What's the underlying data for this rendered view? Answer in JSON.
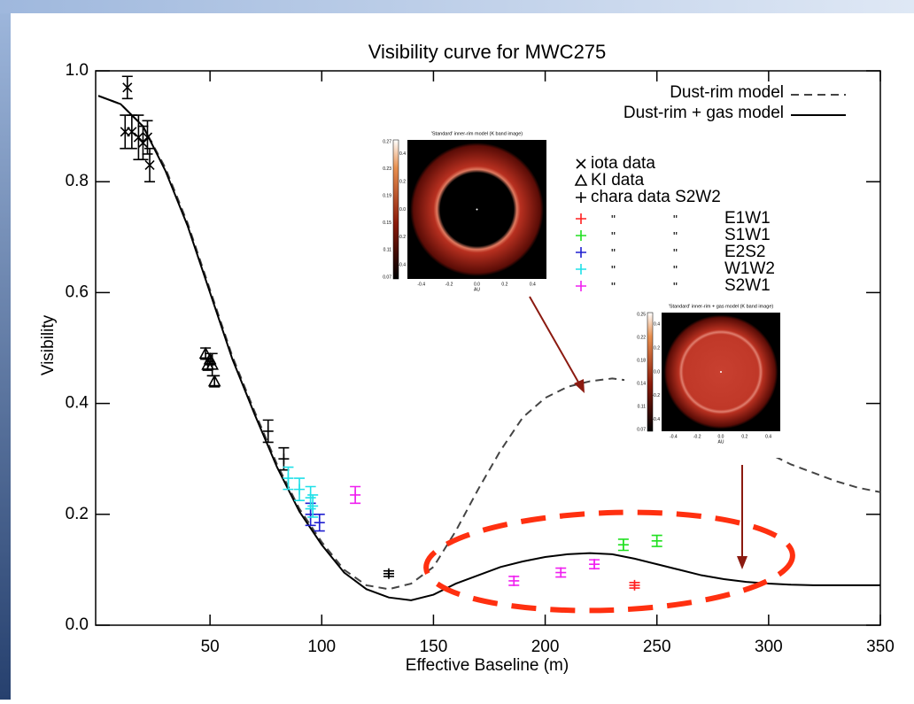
{
  "chart_data": {
    "type": "line",
    "title": "Visibility curve for MWC275",
    "xlabel": "Effective Baseline (m)",
    "ylabel": "Visibility",
    "xlim": [
      0,
      350
    ],
    "ylim": [
      0,
      1
    ],
    "xticks": [
      50,
      100,
      150,
      200,
      250,
      300,
      350
    ],
    "yticks": [
      {
        "value": 0,
        "label": "0.0"
      },
      0.2,
      0.4,
      0.6,
      0.8,
      {
        "value": 1,
        "label": "1.0"
      }
    ],
    "ditto": "\"",
    "models": [
      {
        "name": "Dust-rim model",
        "color": "#444444",
        "style": "dashed",
        "x": [
          0,
          10,
          20,
          30,
          40,
          50,
          60,
          70,
          80,
          90,
          100,
          110,
          120,
          130,
          140,
          150,
          160,
          170,
          180,
          190,
          200,
          210,
          220,
          230,
          240,
          250,
          260,
          270,
          280,
          290,
          300,
          310,
          320,
          330,
          340,
          350
        ],
        "values": [
          0.955,
          0.94,
          0.9,
          0.825,
          0.725,
          0.605,
          0.485,
          0.385,
          0.29,
          0.21,
          0.15,
          0.1,
          0.072,
          0.065,
          0.075,
          0.105,
          0.17,
          0.245,
          0.315,
          0.375,
          0.41,
          0.43,
          0.44,
          0.445,
          0.44,
          0.425,
          0.405,
          0.38,
          0.355,
          0.33,
          0.31,
          0.29,
          0.275,
          0.26,
          0.248,
          0.24
        ]
      },
      {
        "name": "Dust-rim + gas model",
        "color": "#000000",
        "style": "solid",
        "x": [
          0,
          10,
          20,
          30,
          40,
          50,
          60,
          70,
          80,
          90,
          100,
          110,
          120,
          130,
          140,
          150,
          160,
          170,
          180,
          190,
          200,
          210,
          220,
          230,
          240,
          250,
          260,
          270,
          280,
          290,
          300,
          310,
          320,
          330,
          340,
          350
        ],
        "values": [
          0.955,
          0.94,
          0.9,
          0.82,
          0.72,
          0.6,
          0.48,
          0.38,
          0.285,
          0.205,
          0.145,
          0.095,
          0.065,
          0.05,
          0.045,
          0.055,
          0.075,
          0.09,
          0.105,
          0.115,
          0.123,
          0.128,
          0.13,
          0.128,
          0.12,
          0.11,
          0.1,
          0.09,
          0.083,
          0.078,
          0.075,
          0.073,
          0.072,
          0.072,
          0.072,
          0.072
        ]
      }
    ],
    "series": [
      {
        "name": "iota data",
        "color": "#000000",
        "marker": "x",
        "x": [
          13,
          12,
          15,
          18,
          20,
          22,
          23
        ],
        "values": [
          0.97,
          0.89,
          0.89,
          0.88,
          0.87,
          0.88,
          0.83
        ],
        "errors": [
          0.02,
          0.03,
          0.03,
          0.04,
          0.03,
          0.03,
          0.03
        ]
      },
      {
        "name": "KI data",
        "color": "#000000",
        "marker": "triangle",
        "x": [
          48,
          49,
          50,
          51,
          52
        ],
        "values": [
          0.49,
          0.47,
          0.48,
          0.47,
          0.44
        ],
        "errors": [
          0.01,
          0.01,
          0.01,
          0.02,
          0.01
        ]
      },
      {
        "name": "chara data S2W2",
        "color": "#000000",
        "marker": "plus",
        "x": [
          76,
          83,
          130
        ],
        "values": [
          0.35,
          0.3,
          0.093
        ],
        "errors": [
          0.02,
          0.02,
          0.005
        ]
      },
      {
        "name": "E1W1",
        "color": "#ff2020",
        "marker": "plus",
        "x": [
          240
        ],
        "values": [
          0.072
        ],
        "errors": [
          0.005
        ]
      },
      {
        "name": "S1W1",
        "color": "#20e020",
        "marker": "plus",
        "x": [
          235,
          250
        ],
        "values": [
          0.145,
          0.152
        ],
        "errors": [
          0.01,
          0.01
        ]
      },
      {
        "name": "E2S2",
        "color": "#2020d0",
        "marker": "plus",
        "x": [
          95,
          99
        ],
        "values": [
          0.2,
          0.185
        ],
        "errors": [
          0.02,
          0.015
        ]
      },
      {
        "name": "W1W2",
        "color": "#20e0e8",
        "marker": "plus",
        "x": [
          85,
          90,
          95,
          96
        ],
        "values": [
          0.265,
          0.245,
          0.23,
          0.215
        ],
        "errors": [
          0.02,
          0.02,
          0.02,
          0.02
        ]
      },
      {
        "name": "S2W1",
        "color": "#f020f0",
        "marker": "plus",
        "x": [
          115,
          186,
          207,
          222
        ],
        "values": [
          0.235,
          0.08,
          0.095,
          0.11
        ],
        "errors": [
          0.015,
          0.008,
          0.008,
          0.008
        ]
      }
    ]
  },
  "insets": [
    {
      "title": "'Standard' inner-rim  model (K band image)",
      "xlabel": "AU",
      "ticks": [
        "-0.4",
        "-0.2",
        "0.0",
        "0.2",
        "0.4"
      ],
      "colorbar": [
        "0.27",
        "0.23",
        "0.19",
        "0.15",
        "0.11",
        "0.07"
      ]
    },
    {
      "title": "'Standard' inner-rim + gas  model (K band image)",
      "xlabel": "AU",
      "ticks": [
        "-0.4",
        "-0.2",
        "0.0",
        "0.2",
        "0.4"
      ],
      "colorbar": [
        "0.25",
        "0.22",
        "0.18",
        "0.14",
        "0.11",
        "0.07"
      ]
    }
  ]
}
